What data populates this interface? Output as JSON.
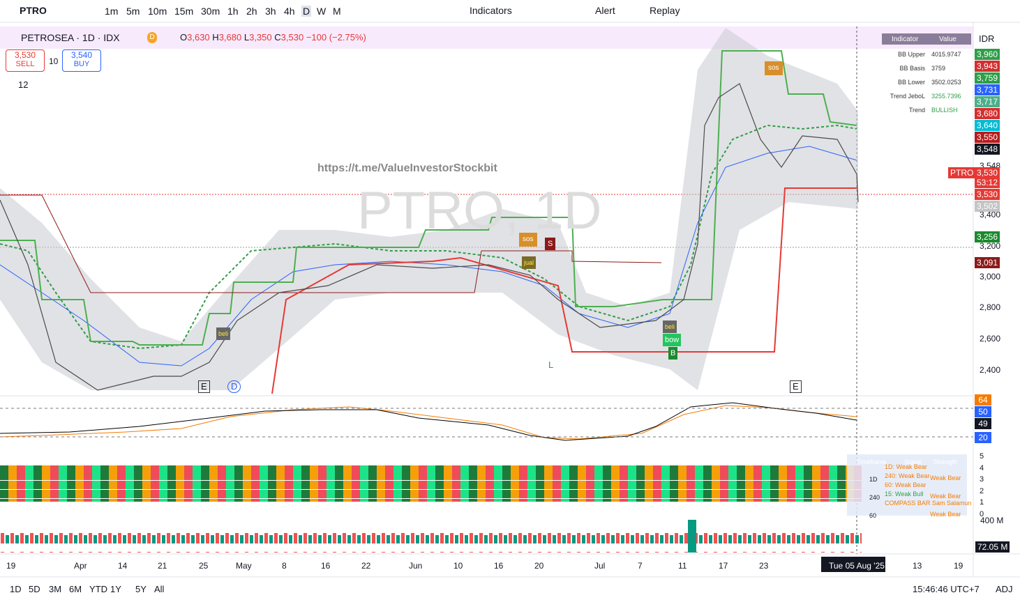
{
  "toolbar": {
    "symbol": "PTRO",
    "intervals": [
      "1m",
      "5m",
      "10m",
      "15m",
      "30m",
      "1h",
      "2h",
      "3h",
      "4h",
      "D",
      "W",
      "M"
    ],
    "indicators": "Indicators",
    "alert": "Alert",
    "replay": "Replay"
  },
  "legend": {
    "title": "PETROSEA · 1D · IDX",
    "open_label": "O",
    "open": "3,630",
    "high_label": "H",
    "high": "3,680",
    "low_label": "L",
    "low": "3,350",
    "close_label": "C",
    "close": "3,530",
    "change": "−100 (−2.75%)",
    "badges": [
      "D"
    ]
  },
  "trade": {
    "sell_price": "3,530",
    "sell": "SELL",
    "quantity": "10",
    "buy_price": "3,540",
    "buy": "BUY",
    "indicators_count": "12"
  },
  "watermark": {
    "url": "https://t.me/ValueInvestorStockbit",
    "symbol": "PTRO, 1D"
  },
  "indicator_table": {
    "headers": [
      "Indicator",
      "Value"
    ],
    "rows": [
      [
        "BB Upper",
        "4015.9747"
      ],
      [
        "BB Basis",
        "3759"
      ],
      [
        "BB Lower",
        "3502.0253"
      ],
      [
        "Trend JeboL",
        "3255.7396"
      ],
      [
        "Trend",
        "BULLISH"
      ]
    ]
  },
  "currency": "IDR",
  "price_axis": {
    "labels": [
      "3,548",
      "3,400",
      "3,200",
      "3,000",
      "2,800",
      "2,600",
      "2,400"
    ],
    "tags": [
      "3,960",
      "3,943",
      "3,759",
      "3,731",
      "3,717",
      "3,680",
      "3,640",
      "3,550",
      "3,548",
      "3,530",
      "3,502",
      "3,256",
      "3,091"
    ],
    "symbol_tag": {
      "name": "PTRO",
      "price": "3,530",
      "countdown": "53:12"
    }
  },
  "markers": [
    "sos",
    "jual",
    "S",
    "beli",
    "beli",
    "bow",
    "B",
    "sos",
    "L",
    "E",
    "D",
    "E"
  ],
  "oscillator_tags": [
    "64",
    "50",
    "49",
    "20"
  ],
  "compass": {
    "headers": [
      "Timeframe",
      "Signal",
      "Strength"
    ],
    "rows": [
      "1D: Weak Bear",
      "240: Weak Bear",
      "60: Weak Bear",
      "15: Weak Bull"
    ],
    "title": "COMPASS BAR Sam Salamun",
    "strengths": [
      "Weak Bear",
      "Weak Bear",
      "Weak Bear"
    ],
    "timeframes": [
      "1D",
      "240",
      "60"
    ],
    "axis": [
      "5",
      "4",
      "3",
      "2",
      "1",
      "0"
    ]
  },
  "volume": {
    "scale": "400 M",
    "tag": "72.05 M"
  },
  "x_axis": [
    "19",
    "Apr",
    "14",
    "21",
    "25",
    "May",
    "8",
    "16",
    "22",
    "Jun",
    "10",
    "16",
    "20",
    "Jul",
    "7",
    "11",
    "17",
    "23",
    "13",
    "19"
  ],
  "date_tag": "Tue 05 Aug '25",
  "bottom": {
    "ranges": [
      "1D",
      "5D",
      "3M",
      "6M",
      "YTD",
      "1Y",
      "5Y",
      "All"
    ],
    "time": "15:46:46 UTC+7",
    "adj": "ADJ"
  }
}
